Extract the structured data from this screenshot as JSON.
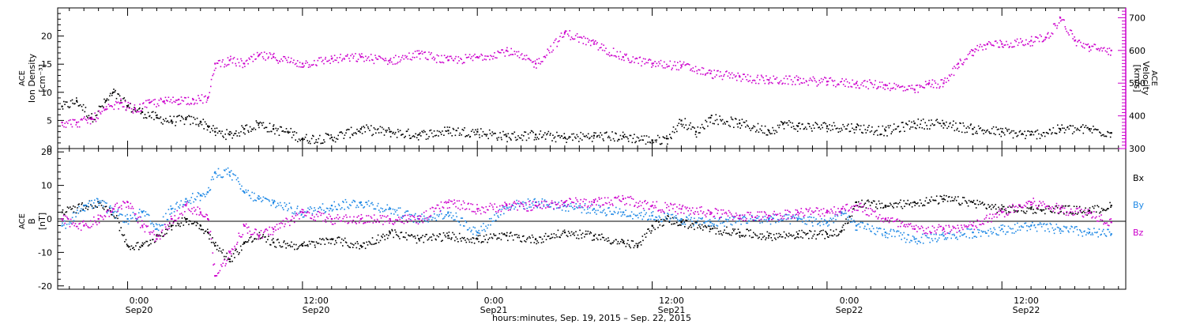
{
  "colors": {
    "black": "#000000",
    "magenta": "#cc00cc",
    "blue": "#1e88e5"
  },
  "top_panel": {
    "ylabel_lines": [
      "ACE",
      "Ion Density",
      "[cm⁻³]"
    ],
    "right_label_lines": [
      "ACE",
      "Velocity",
      "[km/s]"
    ],
    "yticks_left": [
      "0",
      "5",
      "10",
      "15",
      "20"
    ],
    "yticks_right": [
      "300",
      "400",
      "500",
      "600",
      "700"
    ]
  },
  "bottom_panel": {
    "ylabel_lines": [
      "ACE",
      "B",
      "[nT]"
    ],
    "yticks": [
      "-20",
      "-10",
      "0",
      "10",
      "20"
    ],
    "legend": [
      {
        "label": "Bx",
        "color": "#000000"
      },
      {
        "label": "By",
        "color": "#1e88e5"
      },
      {
        "label": "Bz",
        "color": "#cc00cc"
      }
    ]
  },
  "xaxis": {
    "ticks": [
      {
        "time": "0:00",
        "date": "Sep20"
      },
      {
        "time": "12:00",
        "date": "Sep20"
      },
      {
        "time": "0:00",
        "date": "Sep21"
      },
      {
        "time": "12:00",
        "date": "Sep21"
      },
      {
        "time": "0:00",
        "date": "Sep22"
      },
      {
        "time": "12:00",
        "date": "Sep22"
      }
    ],
    "title": "hours:minutes, Sep. 19, 2015 – Sep. 22, 2015"
  },
  "chart_data": [
    {
      "type": "scatter",
      "panel": "top",
      "x_unit": "hours since 2015-09-19 00:00 UT",
      "xlim": [
        19.2,
        92.5
      ],
      "ylim_left": [
        0,
        25
      ],
      "ylim_right": [
        300,
        730
      ],
      "series": [
        {
          "name": "Ion Density",
          "axis": "left",
          "color": "#000000",
          "x": [
            19.5,
            20.5,
            21.5,
            22.5,
            23.0,
            24.0,
            25.0,
            26.0,
            27.0,
            28.0,
            29.0,
            29.5,
            30.0,
            31.0,
            32.0,
            33.0,
            34.0,
            35.0,
            36.0,
            38.0,
            40.0,
            42.0,
            44.0,
            46.0,
            48.0,
            50.0,
            52.0,
            54.0,
            56.0,
            58.0,
            60.0,
            61.0,
            62.0,
            63.0,
            64.0,
            66.0,
            68.0,
            69.0,
            70.0,
            72.0,
            74.0,
            76.0,
            78.0,
            80.0,
            82.0,
            84.0,
            86.0,
            88.0,
            90.0,
            91.5
          ],
          "y": [
            7.5,
            8.5,
            5.5,
            8.5,
            10.0,
            7.5,
            6.5,
            5.5,
            5.0,
            5.2,
            4.8,
            4.0,
            3.0,
            2.5,
            3.5,
            4.5,
            3.5,
            3.0,
            1.8,
            2.0,
            3.5,
            3.0,
            2.5,
            3.2,
            3.0,
            2.2,
            2.5,
            2.0,
            2.3,
            2.2,
            1.5,
            1.8,
            5.0,
            3.0,
            5.5,
            4.5,
            3.2,
            4.5,
            4.0,
            4.0,
            3.8,
            3.2,
            4.5,
            4.5,
            3.5,
            3.0,
            2.5,
            3.5,
            3.5,
            2.8
          ]
        },
        {
          "name": "Velocity",
          "axis": "right",
          "color": "#cc00cc",
          "x": [
            19.5,
            20.5,
            21.5,
            22.5,
            23.5,
            24.5,
            25.5,
            26.5,
            27.5,
            28.5,
            29.5,
            30.0,
            31.0,
            32.0,
            33.0,
            34.0,
            36.0,
            38.0,
            40.0,
            42.0,
            44.0,
            46.0,
            48.0,
            50.0,
            52.0,
            54.0,
            56.0,
            58.0,
            60.0,
            62.0,
            64.0,
            66.0,
            68.0,
            70.0,
            72.0,
            74.0,
            76.0,
            78.0,
            79.0,
            80.0,
            81.0,
            82.0,
            83.0,
            84.0,
            86.0,
            87.0,
            88.0,
            89.0,
            90.0,
            91.5
          ],
          "y": [
            380,
            380,
            390,
            420,
            440,
            420,
            440,
            445,
            450,
            450,
            455,
            560,
            570,
            560,
            585,
            580,
            560,
            575,
            580,
            570,
            590,
            570,
            580,
            600,
            560,
            655,
            620,
            580,
            560,
            555,
            530,
            520,
            510,
            510,
            505,
            500,
            495,
            480,
            500,
            500,
            560,
            600,
            620,
            620,
            630,
            640,
            700,
            630,
            610,
            600
          ]
        }
      ]
    },
    {
      "type": "scatter",
      "panel": "bottom",
      "x_unit": "hours since 2015-09-19 00:00 UT",
      "xlim": [
        19.2,
        92.5
      ],
      "ylim": [
        -21,
        21
      ],
      "series": [
        {
          "name": "Bx",
          "color": "#000000",
          "x": [
            19.5,
            21.0,
            22.0,
            23.0,
            24.0,
            25.0,
            26.0,
            27.0,
            28.0,
            29.0,
            29.5,
            30.0,
            31.0,
            32.0,
            33.0,
            34.0,
            36.0,
            38.0,
            40.0,
            42.0,
            44.0,
            46.0,
            48.0,
            50.0,
            52.0,
            54.0,
            56.0,
            58.0,
            59.0,
            60.0,
            61.0,
            62.0,
            64.0,
            66.0,
            68.0,
            70.0,
            72.0,
            73.0,
            74.0,
            76.0,
            78.0,
            80.0,
            82.0,
            84.0,
            86.0,
            88.0,
            90.0,
            91.5
          ],
          "y": [
            2.0,
            4.0,
            5.0,
            2.0,
            -8.0,
            -8.0,
            -5.0,
            -2.0,
            0.0,
            -2.0,
            -4.0,
            -8.0,
            -12.0,
            -7.0,
            -5.0,
            -7.0,
            -8.0,
            -6.0,
            -8.0,
            -4.0,
            -6.0,
            -5.0,
            -6.0,
            -5.0,
            -6.0,
            -4.0,
            -5.0,
            -7.0,
            -8.0,
            -2.0,
            0.0,
            -1.0,
            -3.0,
            -4.0,
            -5.0,
            -4.5,
            -4.5,
            -3.5,
            5.0,
            4.0,
            5.0,
            6.0,
            5.0,
            3.0,
            3.0,
            3.0,
            2.5,
            4.0
          ]
        },
        {
          "name": "By",
          "color": "#1e88e5",
          "x": [
            19.5,
            21.0,
            22.0,
            23.0,
            24.0,
            25.0,
            26.0,
            27.0,
            28.0,
            29.0,
            29.5,
            30.0,
            31.0,
            32.0,
            33.0,
            34.0,
            36.0,
            38.0,
            40.0,
            42.0,
            44.0,
            46.0,
            48.0,
            50.0,
            52.0,
            54.0,
            56.0,
            58.0,
            60.0,
            62.0,
            64.0,
            66.0,
            68.0,
            70.0,
            72.0,
            73.0,
            74.0,
            76.0,
            78.0,
            80.0,
            82.0,
            84.0,
            86.0,
            88.0,
            90.0,
            91.5
          ],
          "y": [
            -2.0,
            4.0,
            5.0,
            2.0,
            0.0,
            2.0,
            -3.0,
            3.0,
            6.0,
            7.0,
            8.0,
            14.0,
            14.0,
            8.0,
            6.0,
            5.0,
            2.0,
            4.0,
            5.0,
            3.0,
            0.0,
            2.0,
            -4.0,
            4.0,
            5.0,
            4.0,
            3.0,
            2.0,
            1.0,
            0.0,
            -1.0,
            0.0,
            0.0,
            0.0,
            -1.0,
            2.0,
            -2.0,
            -4.0,
            -6.0,
            -5.0,
            -4.0,
            -3.0,
            -2.0,
            -3.0,
            -4.0,
            -4.5
          ]
        },
        {
          "name": "Bz",
          "color": "#cc00cc",
          "x": [
            19.5,
            21.0,
            22.0,
            23.0,
            24.0,
            25.0,
            26.0,
            27.0,
            28.0,
            29.0,
            29.5,
            30.0,
            31.0,
            32.0,
            33.0,
            34.0,
            36.0,
            38.0,
            40.0,
            42.0,
            44.0,
            46.0,
            48.0,
            50.0,
            52.0,
            54.0,
            56.0,
            58.0,
            60.0,
            62.0,
            64.0,
            66.0,
            68.0,
            70.0,
            72.0,
            73.0,
            74.0,
            76.0,
            78.0,
            80.0,
            82.0,
            84.0,
            86.0,
            88.0,
            90.0,
            91.5
          ],
          "y": [
            0.0,
            -2.0,
            0.0,
            3.0,
            5.0,
            -2.0,
            -6.0,
            0.0,
            4.0,
            2.0,
            0.0,
            -17.0,
            -10.0,
            -2.0,
            -5.0,
            -3.0,
            2.0,
            0.0,
            0.0,
            0.0,
            0.0,
            5.0,
            3.0,
            4.0,
            4.0,
            5.0,
            5.0,
            6.0,
            4.0,
            3.0,
            2.0,
            1.0,
            1.0,
            2.0,
            2.5,
            3.0,
            4.0,
            0.0,
            -3.0,
            -3.0,
            -2.0,
            2.0,
            5.0,
            3.0,
            2.0,
            -1.0
          ]
        }
      ]
    }
  ]
}
